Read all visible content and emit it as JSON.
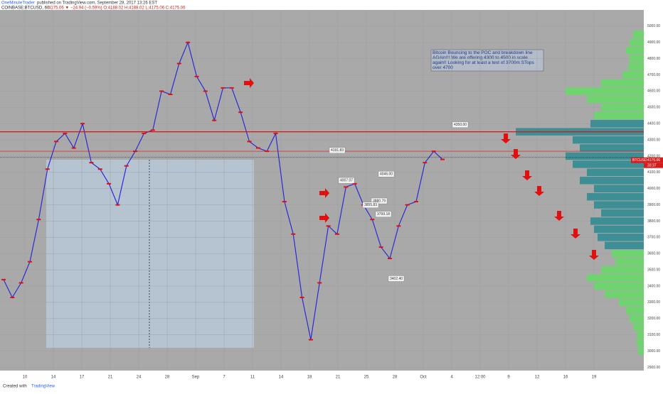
{
  "header": {
    "author": "OneMinuteTrader",
    "published": "published on TradingView.com, September 28, 2017 13:26 EST",
    "symbol": "COINBASE:BTCUSD, 60",
    "quote": "4175.06 ▼ −24.94 (−0.59%) O:4188.02 H:4188.02 L:4175.06 C:4175.06"
  },
  "footer": {
    "created": "Created with",
    "brand": "TradingView"
  },
  "chart_data": {
    "type": "line",
    "color": "#2b2bd6",
    "values": [
      3440,
      3330,
      3420,
      3550,
      3810,
      4120,
      4290,
      4340,
      4250,
      4400,
      4160,
      4120,
      4030,
      3900,
      4140,
      4230,
      4340,
      4360,
      4600,
      4580,
      4770,
      4900,
      4690,
      4600,
      4420,
      4620,
      4620,
      4470,
      4290,
      4250,
      4230,
      4340,
      3920,
      3720,
      3330,
      3070,
      3420,
      3770,
      3720,
      4010,
      4030,
      3900,
      3810,
      3640,
      3570,
      3770,
      3900,
      3920,
      4160,
      4230,
      4180
    ],
    "ylim": [
      2880,
      5100
    ],
    "yticks": [
      {
        "value": 2900,
        "label": "2900.00"
      },
      {
        "value": 3000,
        "label": "3000.00"
      },
      {
        "value": 3100,
        "label": "3100.00"
      },
      {
        "value": 3200,
        "label": "3200.00"
      },
      {
        "value": 3300,
        "label": "3300.00"
      },
      {
        "value": 3400,
        "label": "3400.00"
      },
      {
        "value": 3500,
        "label": "3500.00"
      },
      {
        "value": 3600,
        "label": "3600.00"
      },
      {
        "value": 3700,
        "label": "3700.00"
      },
      {
        "value": 3800,
        "label": "3800.00"
      },
      {
        "value": 3900,
        "label": "3900.00"
      },
      {
        "value": 4000,
        "label": "4000.00"
      },
      {
        "value": 4100,
        "label": "4100.00"
      },
      {
        "value": 4200,
        "label": "4200.00"
      },
      {
        "value": 4300,
        "label": "4300.00"
      },
      {
        "value": 4400,
        "label": "4400.00"
      },
      {
        "value": 4500,
        "label": "4500.00"
      },
      {
        "value": 4600,
        "label": "4600.00"
      },
      {
        "value": 4700,
        "label": "4700.00"
      },
      {
        "value": 4800,
        "label": "4800.00"
      },
      {
        "value": 4900,
        "label": "4900.00"
      },
      {
        "value": 5000,
        "label": "5000.00"
      }
    ],
    "xticks": [
      "10",
      "14",
      "17",
      "21",
      "24",
      "28",
      "Sep",
      "7",
      "11",
      "14",
      "18",
      "21",
      "25",
      "28",
      "Oct",
      "4",
      "12:00",
      "9",
      "12",
      "16",
      "19"
    ],
    "hlines": [
      {
        "value": 4350,
        "color": "#e01010"
      },
      {
        "value": 4230,
        "color": "#e01010"
      },
      {
        "value": 4191.83,
        "color": "#222222"
      }
    ],
    "price_labels": [
      {
        "value": 4191.83,
        "label": "4191.83"
      },
      {
        "value": 4007.07,
        "label": "4007.07"
      },
      {
        "value": 4046,
        "label": "4046.00"
      },
      {
        "value": 3880.79,
        "label": "3880.79"
      },
      {
        "value": 3855.83,
        "label": "3855.83"
      },
      {
        "value": 3799.18,
        "label": "3799.18"
      },
      {
        "value": 3402.4,
        "label": "3402.40"
      },
      {
        "value": 4350,
        "label": "4350.00"
      }
    ],
    "last_price": {
      "symbol": "BTCUSD",
      "value": 4175.06,
      "label": "4175.06",
      "countdown": "33:37"
    },
    "annotation": "Bitcoin Bouncing to the POC and breakdown line AGAin!!!  We are offering 4300 to 4500 in scale again!! Looking for at least a test of 3700m STops over 4700",
    "volume_profile": {
      "prices": [
        4950,
        4900,
        4850,
        4800,
        4750,
        4700,
        4650,
        4600,
        4550,
        4500,
        4450,
        4400,
        4350,
        4300,
        4250,
        4200,
        4150,
        4100,
        4050,
        4000,
        3950,
        3900,
        3850,
        3800,
        3750,
        3700,
        3650,
        3600,
        3550,
        3500,
        3450,
        3400,
        3350,
        3300,
        3250,
        3200,
        3150,
        3100,
        3050,
        3000
      ],
      "values": [
        15,
        20,
        25,
        20,
        22,
        30,
        60,
        110,
        80,
        60,
        70,
        75,
        180,
        100,
        90,
        110,
        100,
        80,
        90,
        70,
        80,
        70,
        60,
        75,
        70,
        65,
        55,
        45,
        40,
        60,
        80,
        70,
        55,
        35,
        25,
        20,
        15,
        10,
        10,
        8
      ],
      "colors": [
        "#6fd36f",
        "#6fd36f",
        "#6fd36f",
        "#6fd36f",
        "#6fd36f",
        "#6fd36f",
        "#6fd36f",
        "#6fd36f",
        "#6fd36f",
        "#6fd36f",
        "#6fd36f",
        "#3d8f95",
        "#3d8f95",
        "#3d8f95",
        "#3d8f95",
        "#3d8f95",
        "#3d8f95",
        "#3d8f95",
        "#3d8f95",
        "#3d8f95",
        "#3d8f95",
        "#3d8f95",
        "#3d8f95",
        "#3d8f95",
        "#3d8f95",
        "#3d8f95",
        "#3d8f95",
        "#6fd36f",
        "#6fd36f",
        "#6fd36f",
        "#6fd36f",
        "#6fd36f",
        "#6fd36f",
        "#6fd36f",
        "#6fd36f",
        "#6fd36f",
        "#6fd36f",
        "#6fd36f",
        "#6fd36f",
        "#6fd36f"
      ]
    }
  }
}
